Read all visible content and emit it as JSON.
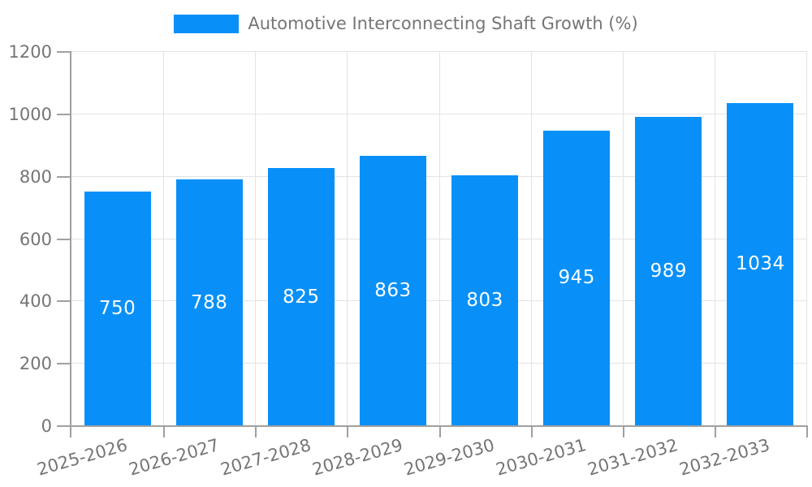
{
  "chart_data": {
    "type": "bar",
    "title": "",
    "legend": "Automotive Interconnecting Shaft Growth (%)",
    "legend_position": "top-center",
    "categories": [
      "2025-2026",
      "2026-2027",
      "2027-2028",
      "2028-2029",
      "2029-2030",
      "2030-2031",
      "2031-2032",
      "2032-2033"
    ],
    "series": [
      {
        "name": "Automotive Interconnecting Shaft Growth (%)",
        "values": [
          750,
          788,
          825,
          863,
          803,
          945,
          989,
          1034
        ]
      }
    ],
    "value_labels": [
      "750",
      "788",
      "825",
      "863",
      "803",
      "945",
      "989",
      "1034"
    ],
    "xlabel": "",
    "ylabel": "",
    "ylim": [
      0,
      1200
    ],
    "yticks": [
      0,
      200,
      400,
      600,
      800,
      1000,
      1200
    ],
    "grid": "horizontal and vertical light gray",
    "x_label_rotation_deg": -16,
    "colors": {
      "bar": "#0890F8",
      "grid": "#e3e3e3",
      "axis": "#a0a0a0",
      "text": "#757575",
      "value_text": "#ffffff",
      "background": "#ffffff"
    }
  }
}
